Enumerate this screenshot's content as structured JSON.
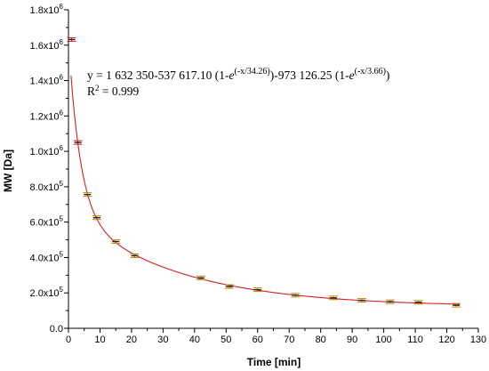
{
  "chart_data": {
    "type": "scatter",
    "xlabel": "Time [min]",
    "ylabel": "MW [Da]",
    "xlim": [
      0,
      130
    ],
    "ylim": [
      0,
      1800000
    ],
    "x_ticks": [
      "0",
      "10",
      "20",
      "30",
      "40",
      "50",
      "60",
      "70",
      "80",
      "90",
      "100",
      "110",
      "120",
      "130"
    ],
    "y_ticks": [
      {
        "mant": "0.0",
        "exp": ""
      },
      {
        "mant": "2.0x10",
        "exp": "5"
      },
      {
        "mant": "4.0x10",
        "exp": "5"
      },
      {
        "mant": "6.0x10",
        "exp": "5"
      },
      {
        "mant": "8.0x10",
        "exp": "5"
      },
      {
        "mant": "1.0x10",
        "exp": "6"
      },
      {
        "mant": "1.2x10",
        "exp": "6"
      },
      {
        "mant": "1.4x10",
        "exp": "6"
      },
      {
        "mant": "1.6x10",
        "exp": "6"
      },
      {
        "mant": "1.8x10",
        "exp": "6"
      }
    ],
    "points": [
      {
        "x": 1,
        "y": 1632000,
        "err": 6000,
        "color": "#d62020"
      },
      {
        "x": 3,
        "y": 1050000,
        "err": 6000,
        "color": "#d62020"
      },
      {
        "x": 6,
        "y": 756000,
        "err": 5000,
        "color": "#b8860b"
      },
      {
        "x": 9,
        "y": 625000,
        "err": 5000,
        "color": "#b8860b"
      },
      {
        "x": 15,
        "y": 490000,
        "err": 5000,
        "color": "#b8860b"
      },
      {
        "x": 21,
        "y": 410000,
        "err": 5000,
        "color": "#b8860b"
      },
      {
        "x": 42,
        "y": 285000,
        "err": 5000,
        "color": "#b8860b"
      },
      {
        "x": 51,
        "y": 236000,
        "err": 4000,
        "color": "#b8860b"
      },
      {
        "x": 60,
        "y": 218000,
        "err": 4000,
        "color": "#b8860b"
      },
      {
        "x": 72,
        "y": 187000,
        "err": 4000,
        "color": "#b8860b"
      },
      {
        "x": 84,
        "y": 172000,
        "err": 4000,
        "color": "#b8860b"
      },
      {
        "x": 93,
        "y": 158000,
        "err": 4000,
        "color": "#b8860b"
      },
      {
        "x": 102,
        "y": 150000,
        "err": 4000,
        "color": "#b8860b"
      },
      {
        "x": 111,
        "y": 147000,
        "err": 4000,
        "color": "#b8860b"
      },
      {
        "x": 123,
        "y": 130000,
        "err": 4000,
        "color": "#b8860b"
      }
    ],
    "fit": {
      "y0": 1632350,
      "A1": 537617.1,
      "t1": 34.26,
      "A2": 973126.25,
      "t2": 3.66,
      "color": "#d62020"
    },
    "equation": {
      "prefix": "y = 1 632 350-537 617.10 (1-",
      "e1": "e",
      "exp1": "(-x/34.26)",
      "mid": ")-973 126.25 (1-",
      "e2": "e",
      "exp2": "(-x/3.66)",
      "suffix": ")",
      "r2_label": "R",
      "r2_sup": "2",
      "r2_value": " = 0.999"
    }
  }
}
